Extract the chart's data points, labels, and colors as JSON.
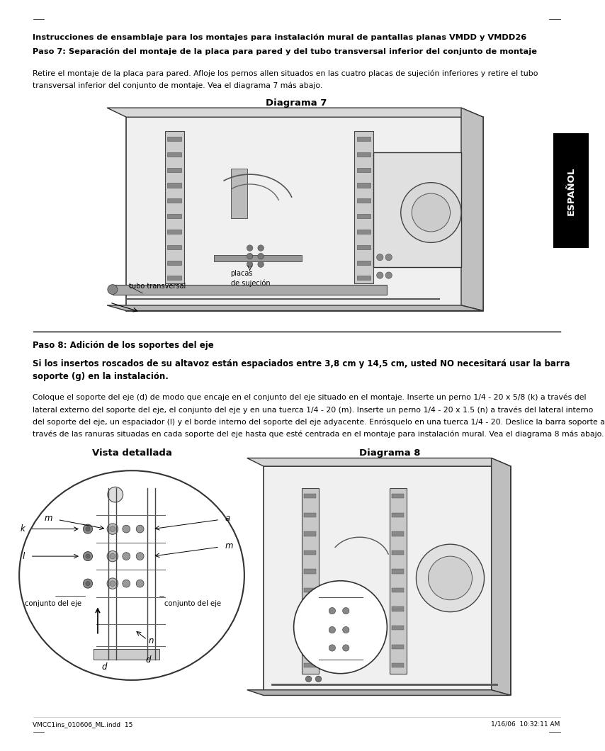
{
  "bg_color": "#ffffff",
  "page_width": 10.8,
  "page_height": 13.77,
  "heading1": "Instrucciones de ensamblaje para los montajes para instalación mural de pantallas planas VMDD y VMDD26",
  "heading2": "Paso 7: Separación del montaje de la placa para pared y del tubo transversal inferior del conjunto de montaje",
  "body1_line1": "Retire el montaje de la placa para pared. Afloje los pernos allen situados en las cuatro placas de sujeción inferiores y retire el tubo",
  "body1_line2": "transversal inferior del conjunto de montaje. Vea el diagrama 7 más abajo.",
  "diagram7_title": "Diagrama 7",
  "diagram7_label_placas": "placas\nde sujeción",
  "diagram7_label_tubo": "tubo transversal",
  "step8_heading": "Paso 8: Adición de los soportes del eje",
  "step8_bold_line1": "Si los insertos roscados de su altavoz están espaciados entre 3,8 cm y 14,5 cm, usted NO necesitará usar la barra",
  "step8_bold_line2": "soporte (g) en la instalación.",
  "body2_line1": "Coloque el soporte del eje (d) de modo que encaje en el conjunto del eje situado en el montaje. Inserte un perno 1/4 - 20 x 5/8 (k) a través del",
  "body2_line2": "lateral externo del soporte del eje, el conjunto del eje y en una tuerca 1/4 - 20 (m). Inserte un perno 1/4 - 20 x 1.5 (n) a través del lateral interno",
  "body2_line3": "del soporte del eje, un espaciador (l) y el borde interno del soporte del eje adyacente. Enrósquelo en una tuerca 1/4 - 20. Deslice la barra soporte a",
  "body2_line4": "través de las ranuras situadas en cada soporte del eje hasta que esté centrada en el montaje para instalación mural. Vea el diagrama 8 más abajo.",
  "vista_title": "Vista detallada",
  "diagram8_title": "Diagrama 8",
  "label_k": "k",
  "label_m": "m",
  "label_a": "a",
  "label_l": "l",
  "label_n": "n",
  "label_d": "d",
  "label_conjunto_eje": "conjunto del eje",
  "espanol_text": "ESPAÑOL",
  "footer_left": "VMCC1ins_010606_ML.indd  15",
  "footer_right": "1/16/06  10:32:11 AM"
}
